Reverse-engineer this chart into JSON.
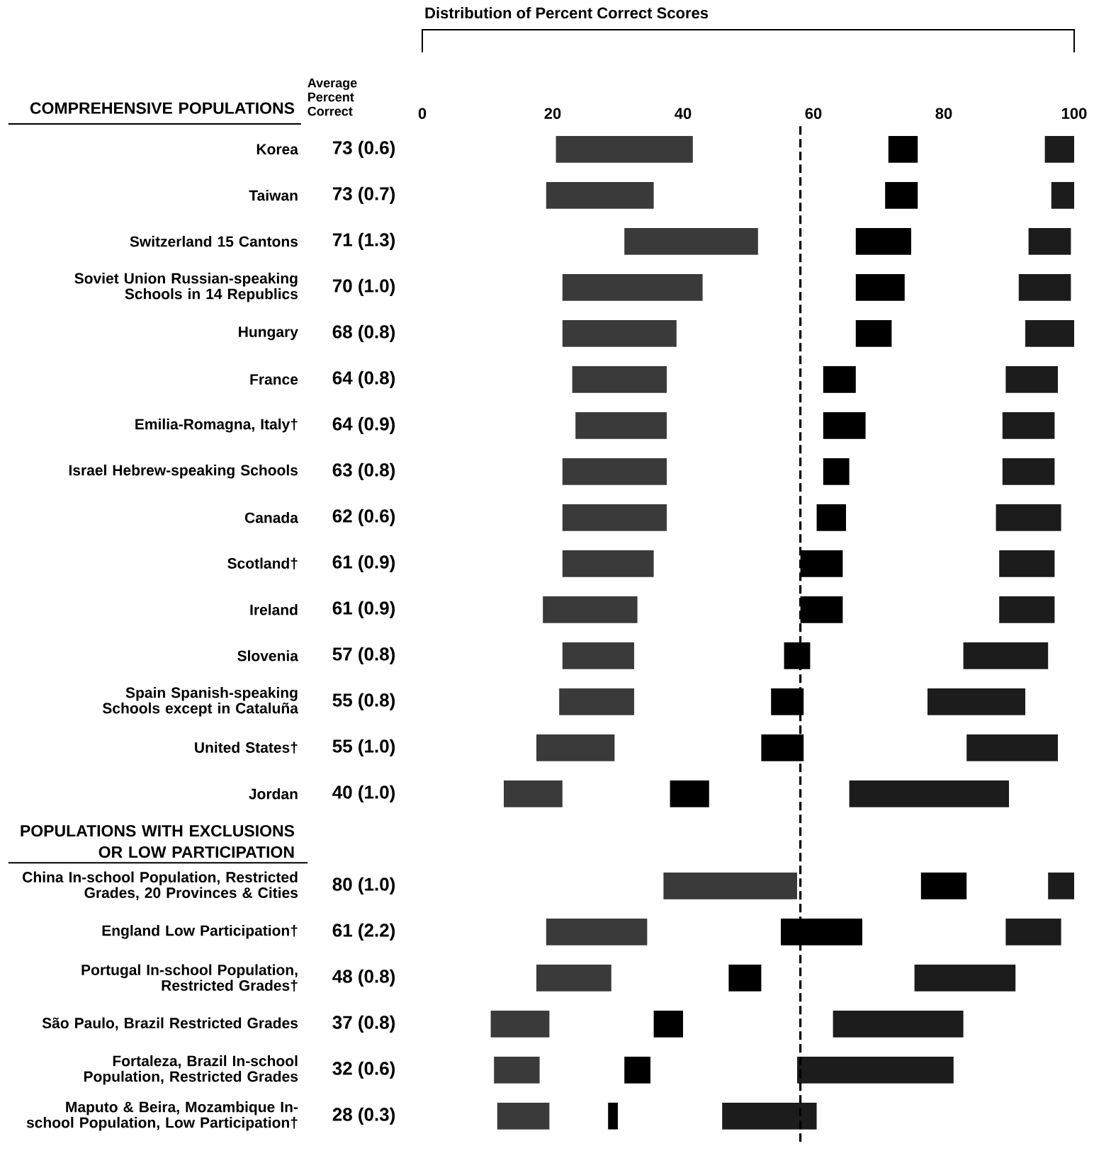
{
  "chart_data": {
    "type": "bar",
    "orientation": "horizontal",
    "title": "Distribution of Percent Correct Scores",
    "annotations": [
      "Average Percent Correct",
      "COMPREHENSIVE POPULATIONS",
      "POPULATIONS WITH EXCLUSIONS OR LOW PARTICIPATION",
      "73 (0.6)",
      "73 (0.7)",
      "71 (1.3)",
      "70 (1.0)",
      "68 (0.8)",
      "64 (0.8)",
      "64 (0.9)",
      "63 (0.8)",
      "62 (0.6)",
      "61 (0.9)",
      "61 (0.9)",
      "57 (0.8)",
      "55 (0.8)",
      "55 (1.0)",
      "40 (1.0)",
      "80 (1.0)",
      "61 (2.2)",
      "48 (0.8)",
      "37 (0.8)",
      "32 (0.6)",
      "28 (0.3)"
    ],
    "categories": [
      "Korea",
      "Taiwan",
      "Switzerland 15 Cantons",
      "Soviet Union Russian-speaking Schools in 14 Republics",
      "Hungary",
      "France",
      "Emilia-Romagna, Italy†",
      "Israel Hebrew-speaking Schools",
      "Canada",
      "Scotland†",
      "Ireland",
      "Slovenia",
      "Spain Spanish-speaking Schools except in Cataluña",
      "United States†",
      "Jordan",
      null,
      "China In-school Population, Restricted Grades, 20 Provinces & Cities",
      "England Low Participation†",
      "Portugal In-school Population, Restricted Grades†",
      "São Paulo, Brazil Restricted Grades",
      "Fortaleza, Brazil In-school Population, Restricted Grades",
      "Maputo & Beira, Mozambique In-school Population, Low Participation†"
    ],
    "xlim": [
      0,
      100
    ],
    "xticks": [
      0,
      20,
      40,
      60,
      80,
      100
    ],
    "series": [
      {
        "color": "#3a3a3a",
        "base": [
          20.5,
          19,
          31,
          21.5,
          21.5,
          23,
          23.5,
          21.5,
          21.5,
          21.5,
          18.5,
          21.5,
          21,
          17.5,
          12.5,
          null,
          37,
          19,
          17.5,
          10.5,
          11,
          11.5
        ],
        "values": [
          21,
          16.5,
          20.5,
          21.5,
          17.5,
          14.5,
          14,
          16,
          16,
          14,
          14.5,
          11,
          11.5,
          12,
          9,
          null,
          20.5,
          15.5,
          11.5,
          9,
          7,
          8
        ]
      },
      {
        "color": "#000000",
        "base": [
          71.5,
          71,
          66.5,
          66.5,
          66.5,
          61.5,
          61.5,
          61.5,
          60.5,
          58,
          58,
          55.5,
          53.5,
          52,
          38,
          null,
          76.5,
          55,
          47,
          35.5,
          31,
          28.5
        ],
        "values": [
          4.5,
          5,
          8.5,
          7.5,
          5.5,
          5,
          6.5,
          4,
          4.5,
          6.5,
          6.5,
          4,
          5,
          6.5,
          6,
          null,
          7,
          12.5,
          5,
          4.5,
          4,
          1.5
        ]
      },
      {
        "color": "#1c1c1c",
        "base": [
          95.5,
          96.5,
          93,
          91.5,
          92.5,
          89.5,
          89,
          89,
          88,
          88.5,
          88.5,
          83,
          77.5,
          83.5,
          65.5,
          null,
          96,
          89.5,
          75.5,
          63,
          57.5,
          46
        ],
        "values": [
          4.5,
          3.5,
          6.5,
          8,
          7.5,
          8,
          8,
          8,
          10,
          8.5,
          8.5,
          13,
          15,
          14,
          24.5,
          null,
          4,
          8.5,
          15.5,
          20,
          24,
          14.5
        ]
      }
    ],
    "ref_lines": [
      {
        "axis": "x",
        "value": 58,
        "line_style": "dashed",
        "color": "#000000"
      }
    ]
  }
}
